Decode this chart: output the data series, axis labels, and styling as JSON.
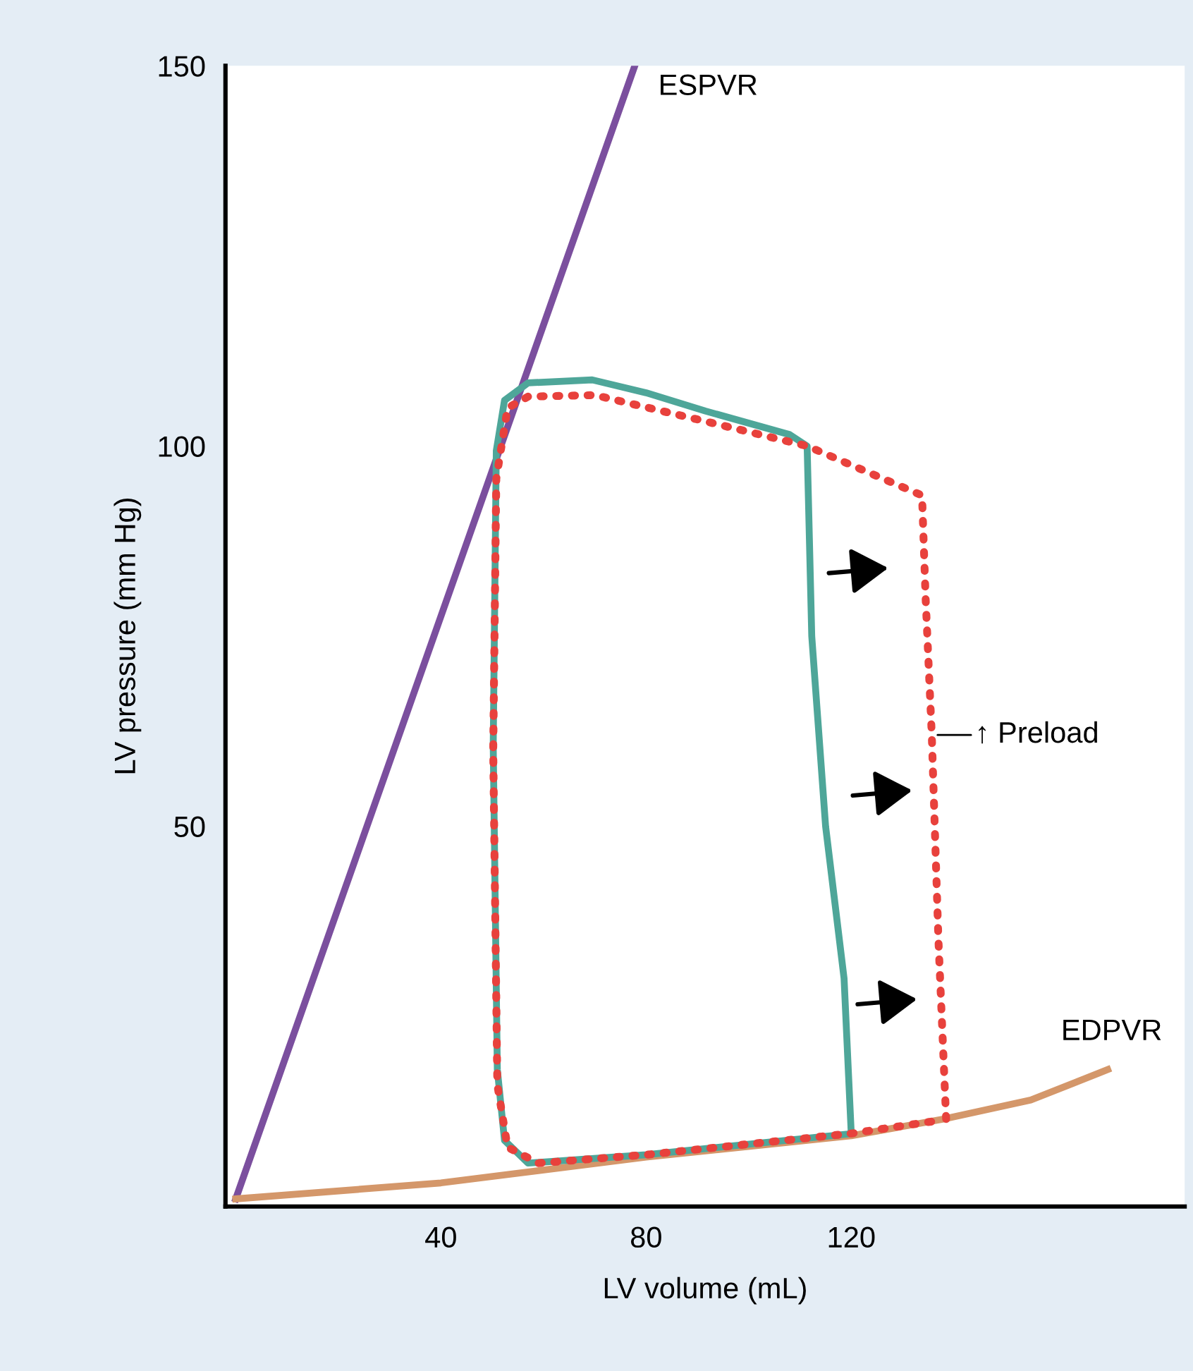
{
  "chart_data": {
    "type": "line",
    "xlabel": "LV volume (mL)",
    "ylabel": "LV pressure (mm Hg)",
    "xlim": [
      -2,
      185
    ],
    "ylim": [
      0,
      150
    ],
    "xticks": [
      40,
      80,
      120
    ],
    "yticks": [
      50,
      100,
      150
    ],
    "grid": false,
    "legend": false,
    "marker": "none",
    "series": [
      {
        "name": "ESPVR",
        "color": "#7b4f9e",
        "line_style": "solid",
        "x": [
          0,
          77.8
        ],
        "values": [
          1,
          150
        ]
      },
      {
        "name": "EDPVR",
        "color": "#d4976a",
        "line_style": "solid",
        "x": [
          0,
          40,
          80,
          120,
          138,
          155,
          170
        ],
        "values": [
          1,
          3.1,
          6.5,
          9.3,
          11.5,
          14,
          18
        ]
      },
      {
        "color": "#4ea699",
        "line_style": "solid",
        "x": [
          120,
          118.6,
          115,
          112.3,
          111.4,
          108,
          91.6,
          80,
          69.5,
          57,
          52.4,
          50.8,
          50.2,
          51,
          52.4,
          57,
          80,
          119
        ],
        "values": [
          9.6,
          30,
          50,
          75,
          100,
          101.5,
          104.6,
          107,
          108.7,
          108.3,
          106,
          99.4,
          60.6,
          18,
          8.7,
          5.7,
          6.8,
          9.5
        ]
      },
      {
        "color": "#e8413c",
        "line_style": "dotted",
        "x": [
          138.5,
          137,
          135.7,
          134.5,
          133.8,
          111.4,
          90,
          70,
          57,
          53,
          50.8,
          50.2,
          51,
          53,
          59,
          80,
          120,
          137
        ],
        "values": [
          11.5,
          35,
          62,
          80,
          93.5,
          100,
          103.5,
          106.7,
          106.5,
          105,
          95.7,
          60,
          16,
          7.8,
          5.7,
          6.8,
          9.6,
          11.3
        ]
      }
    ],
    "annotations": [
      {
        "text": "↑ Preload",
        "x": 135.7,
        "y": 62
      }
    ]
  }
}
